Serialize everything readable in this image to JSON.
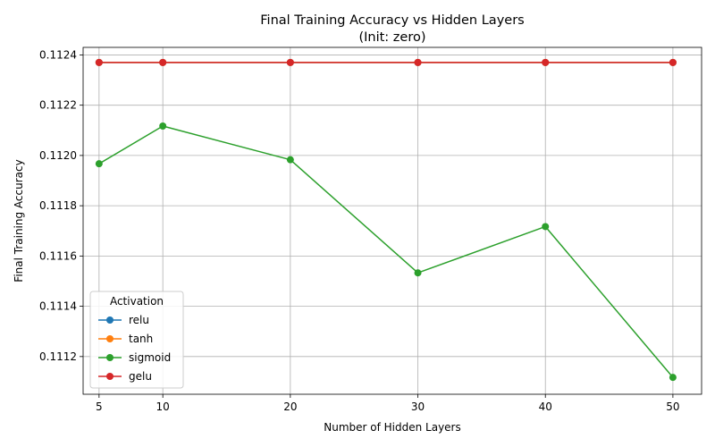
{
  "chart_data": {
    "type": "line",
    "title": "Final Training Accuracy vs Hidden Layers",
    "subtitle": "(Init: zero)",
    "xlabel": "Number of Hidden Layers",
    "ylabel": "Final Training Accuracy",
    "x": [
      5,
      10,
      20,
      30,
      40,
      50
    ],
    "xlim": [
      3.75,
      52.25
    ],
    "ylim": [
      0.11105,
      0.11243
    ],
    "xticks": [
      5,
      10,
      20,
      30,
      40,
      50
    ],
    "xtick_labels": [
      "5",
      "10",
      "20",
      "30",
      "40",
      "50"
    ],
    "yticks": [
      0.1112,
      0.1114,
      0.1116,
      0.1118,
      0.112,
      0.1122,
      0.1124
    ],
    "ytick_labels": [
      "0.1112",
      "0.1114",
      "0.1116",
      "0.1118",
      "0.1120",
      "0.1122",
      "0.1124"
    ],
    "grid": true,
    "legend": {
      "title": "Activation",
      "placement": "lower-left"
    },
    "series": [
      {
        "name": "relu",
        "color": "#1f77b4",
        "values": [
          0.11237,
          0.11237,
          0.11237,
          0.11237,
          0.11237,
          0.11237
        ]
      },
      {
        "name": "tanh",
        "color": "#ff7f0e",
        "values": [
          0.11237,
          0.11237,
          0.11237,
          0.11237,
          0.11237,
          0.11237
        ]
      },
      {
        "name": "sigmoid",
        "color": "#2ca02c",
        "values": [
          0.111967,
          0.112117,
          0.111983,
          0.111533,
          0.111717,
          0.111117
        ]
      },
      {
        "name": "gelu",
        "color": "#d62728",
        "values": [
          0.11237,
          0.11237,
          0.11237,
          0.11237,
          0.11237,
          0.11237
        ]
      }
    ]
  }
}
